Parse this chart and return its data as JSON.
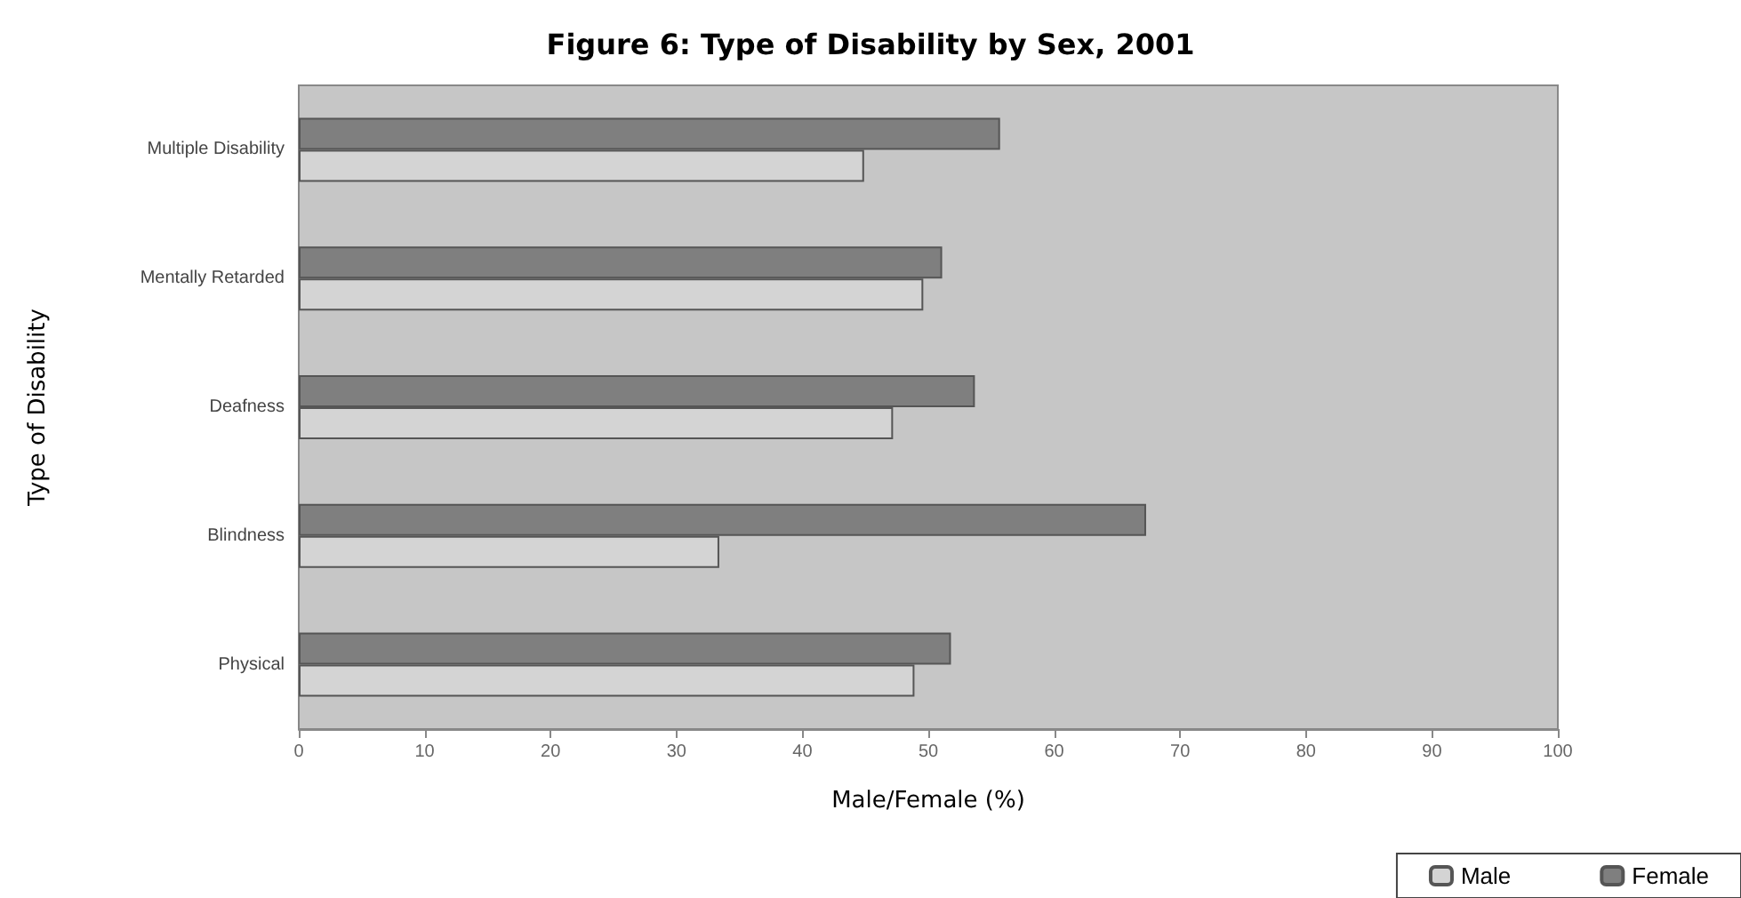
{
  "chart_data": {
    "type": "bar",
    "orientation": "horizontal",
    "title": "Figure 6: Type of Disability by Sex, 2001",
    "xlabel": "Male/Female (%)",
    "ylabel": "Type of Disability",
    "categories": [
      "Multiple Disability",
      "Mentally Retarded",
      "Deafness",
      "Blindness",
      "Physical"
    ],
    "series": [
      {
        "name": "Male",
        "color": "#d4d4d4",
        "values": [
          44.9,
          49.6,
          47.2,
          33.4,
          48.9
        ]
      },
      {
        "name": "Female",
        "color": "#7f7f7f",
        "values": [
          55.7,
          51.1,
          53.7,
          67.3,
          51.8
        ]
      }
    ],
    "xlim": [
      0,
      100
    ],
    "xticks": [
      0,
      10,
      20,
      30,
      40,
      50,
      60,
      70,
      80,
      90,
      100
    ],
    "grid": false,
    "legend": "bottom right"
  }
}
